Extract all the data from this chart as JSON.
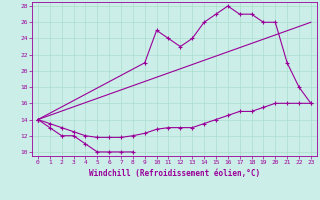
{
  "xlabel": "Windchill (Refroidissement éolien,°C)",
  "bg_color": "#cceee8",
  "grid_color": "#aaddcc",
  "line_color": "#990099",
  "xlim": [
    -0.5,
    23.5
  ],
  "ylim": [
    9.5,
    28.5
  ],
  "xticks": [
    0,
    1,
    2,
    3,
    4,
    5,
    6,
    7,
    8,
    9,
    10,
    11,
    12,
    13,
    14,
    15,
    16,
    17,
    18,
    19,
    20,
    21,
    22,
    23
  ],
  "yticks": [
    10,
    12,
    14,
    16,
    18,
    20,
    22,
    24,
    26,
    28
  ],
  "line1_x": [
    0,
    1,
    2,
    3,
    4,
    5,
    6,
    7,
    8
  ],
  "line1_y": [
    14,
    13,
    12,
    12,
    11,
    10,
    10,
    10,
    10
  ],
  "line2_x": [
    0,
    1,
    2,
    3,
    4,
    5,
    6,
    7,
    8,
    9,
    10,
    11,
    12,
    13,
    14,
    15,
    16,
    17,
    18,
    19,
    20,
    21,
    22,
    23
  ],
  "line2_y": [
    14,
    13.5,
    13,
    12.5,
    12,
    11.8,
    11.8,
    11.8,
    12,
    12.3,
    12.8,
    13,
    13,
    13,
    13.5,
    14,
    14.5,
    15,
    15,
    15.5,
    16,
    16,
    16,
    16
  ],
  "line3_x": [
    0,
    23
  ],
  "line3_y": [
    14,
    26
  ],
  "line4_x": [
    0,
    9,
    10,
    11,
    12,
    13,
    14,
    15,
    16,
    17,
    18,
    19,
    20,
    21,
    22,
    23
  ],
  "line4_y": [
    14,
    21,
    25,
    24,
    23,
    24,
    26,
    27,
    28,
    27,
    27,
    26,
    26,
    21,
    18,
    16
  ]
}
